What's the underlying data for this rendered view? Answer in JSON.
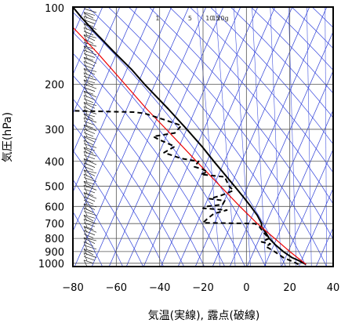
{
  "chart_data": {
    "type": "line",
    "xlabel": "気温(実線), 露点(破線)",
    "ylabel": "気圧(hPa)",
    "xlim": [
      -80,
      40
    ],
    "ylim": [
      1030,
      100
    ],
    "y_scale": "log",
    "x_ticks": [
      "−80",
      "−60",
      "−40",
      "−20",
      "0",
      "20",
      "40"
    ],
    "y_ticks": [
      "100",
      "200",
      "300",
      "400",
      "500",
      "600",
      "700",
      "800",
      "900",
      "1000"
    ],
    "mixing_ratio_labels": [
      "1",
      "5",
      "10",
      "15",
      "20g"
    ],
    "series": [
      {
        "style": "solid-black",
        "color": "#000000",
        "points": [
          [
            1010,
            27.5
          ],
          [
            1000,
            26.5
          ],
          [
            975,
            24
          ],
          [
            950,
            21
          ],
          [
            925,
            19
          ],
          [
            900,
            17
          ],
          [
            850,
            13.5
          ],
          [
            800,
            10.5
          ],
          [
            760,
            9
          ],
          [
            720,
            7
          ],
          [
            700,
            7
          ],
          [
            650,
            5
          ],
          [
            600,
            2
          ],
          [
            550,
            -1.5
          ],
          [
            500,
            -5.5
          ],
          [
            450,
            -10
          ],
          [
            400,
            -15
          ],
          [
            350,
            -20.5
          ],
          [
            300,
            -27.5
          ],
          [
            250,
            -36
          ],
          [
            200,
            -47
          ],
          [
            175,
            -53
          ],
          [
            150,
            -61
          ],
          [
            125,
            -70
          ],
          [
            110,
            -76
          ],
          [
            100,
            -80
          ]
        ]
      },
      {
        "style": "solid-red",
        "color": "#ee0000",
        "points": [
          [
            1010,
            27.5
          ],
          [
            900,
            20
          ],
          [
            800,
            13
          ],
          [
            700,
            5
          ],
          [
            600,
            -3
          ],
          [
            500,
            -12
          ],
          [
            400,
            -23
          ],
          [
            300,
            -37
          ],
          [
            250,
            -46
          ],
          [
            200,
            -56
          ],
          [
            150,
            -69
          ],
          [
            120,
            -80
          ]
        ]
      },
      {
        "style": "dashed-black",
        "color": "#000000",
        "points": [
          [
            1010,
            24
          ],
          [
            990,
            22
          ],
          [
            950,
            17
          ],
          [
            925,
            15
          ],
          [
            900,
            13
          ],
          [
            860,
            9
          ],
          [
            840,
            11
          ],
          [
            825,
            7
          ],
          [
            800,
            10.5
          ],
          [
            760,
            8
          ],
          [
            720,
            6
          ],
          [
            700,
            4
          ],
          [
            695,
            -20
          ],
          [
            670,
            -18
          ],
          [
            640,
            -15
          ],
          [
            620,
            -9
          ],
          [
            610,
            -20
          ],
          [
            600,
            -18
          ],
          [
            590,
            -11
          ],
          [
            570,
            -10
          ],
          [
            560,
            -17
          ],
          [
            545,
            -12
          ],
          [
            520,
            -6
          ],
          [
            500,
            -8
          ],
          [
            480,
            -9
          ],
          [
            460,
            -10
          ],
          [
            450,
            -21
          ],
          [
            440,
            -18
          ],
          [
            430,
            -20
          ],
          [
            420,
            -24
          ],
          [
            400,
            -22
          ],
          [
            390,
            -30
          ],
          [
            370,
            -38
          ],
          [
            350,
            -33
          ],
          [
            330,
            -40
          ],
          [
            320,
            -43
          ],
          [
            310,
            -33
          ],
          [
            290,
            -30
          ],
          [
            275,
            -38
          ],
          [
            260,
            -47
          ],
          [
            257,
            -52
          ],
          [
            254,
            -80
          ]
        ]
      }
    ],
    "annotations": "wind barbs along left side from 1000 to 100 hPa; background blue dry-adiabat, moist-adiabat and mixing-ratio reference lines"
  }
}
